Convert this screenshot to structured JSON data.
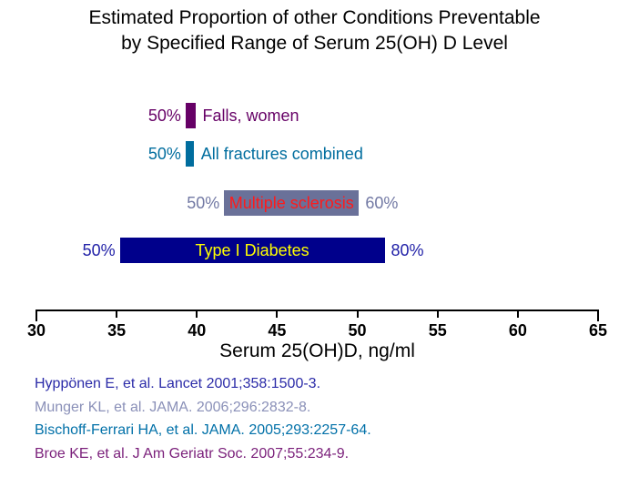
{
  "title": {
    "line1": "Estimated Proportion of other Conditions Preventable",
    "line2": "by Specified Range of  Serum 25(OH) D Level"
  },
  "chart_data": {
    "type": "bar",
    "orientation": "horizontal",
    "title": "Estimated Proportion of other Conditions Preventable by Specified Range of Serum 25(OH) D Level",
    "xlabel": "Serum 25(OH)D, ng/ml",
    "x_axis": {
      "min": 30,
      "max": 65,
      "tick_step": 5,
      "ticks": [
        30,
        35,
        40,
        45,
        50,
        55,
        60,
        65
      ]
    },
    "grid": false,
    "bars": [
      {
        "label": "Falls, women",
        "pct_low": "50%",
        "pct_high": null,
        "range_ngml": [
          39.3,
          39.9
        ],
        "color": "#660066",
        "pct_color": "#660066",
        "name_color": "#660066",
        "name_position": "right"
      },
      {
        "label": "All fractures combined",
        "pct_low": "50%",
        "pct_high": null,
        "range_ngml": [
          39.3,
          39.8
        ],
        "color": "#006D9E",
        "pct_color": "#006D9E",
        "name_color": "#006D9E",
        "name_position": "right"
      },
      {
        "label": "Multiple sclerosis",
        "pct_low": "50%",
        "pct_high": "60%",
        "range_ngml": [
          41.7,
          50.1
        ],
        "color": "#6A7199",
        "pct_color": "#7279A4",
        "name_color": "#FF1A1A",
        "name_position": "inside"
      },
      {
        "label": "Type I Diabetes",
        "pct_low": "50%",
        "pct_high": "80%",
        "range_ngml": [
          35.2,
          51.7
        ],
        "color": "#00008B",
        "pct_color": "#2222A8",
        "name_color": "#FFFF00",
        "name_position": "inside"
      }
    ]
  },
  "citations": [
    {
      "text": "Hyppönen E, et al. Lancet 2001;358:1500-3.",
      "color": "#2B2BA8"
    },
    {
      "text": "Munger KL, et al. JAMA. 2006;296:2832-8.",
      "color": "#8A90B8"
    },
    {
      "text": "Bischoff-Ferrari HA, et al. JAMA. 2005;293:2257-64.",
      "color": "#0070A8"
    },
    {
      "text": "Broe KE, et al. J Am Geriatr Soc. 2007;55:234-9.",
      "color": "#7A1F7A"
    }
  ]
}
